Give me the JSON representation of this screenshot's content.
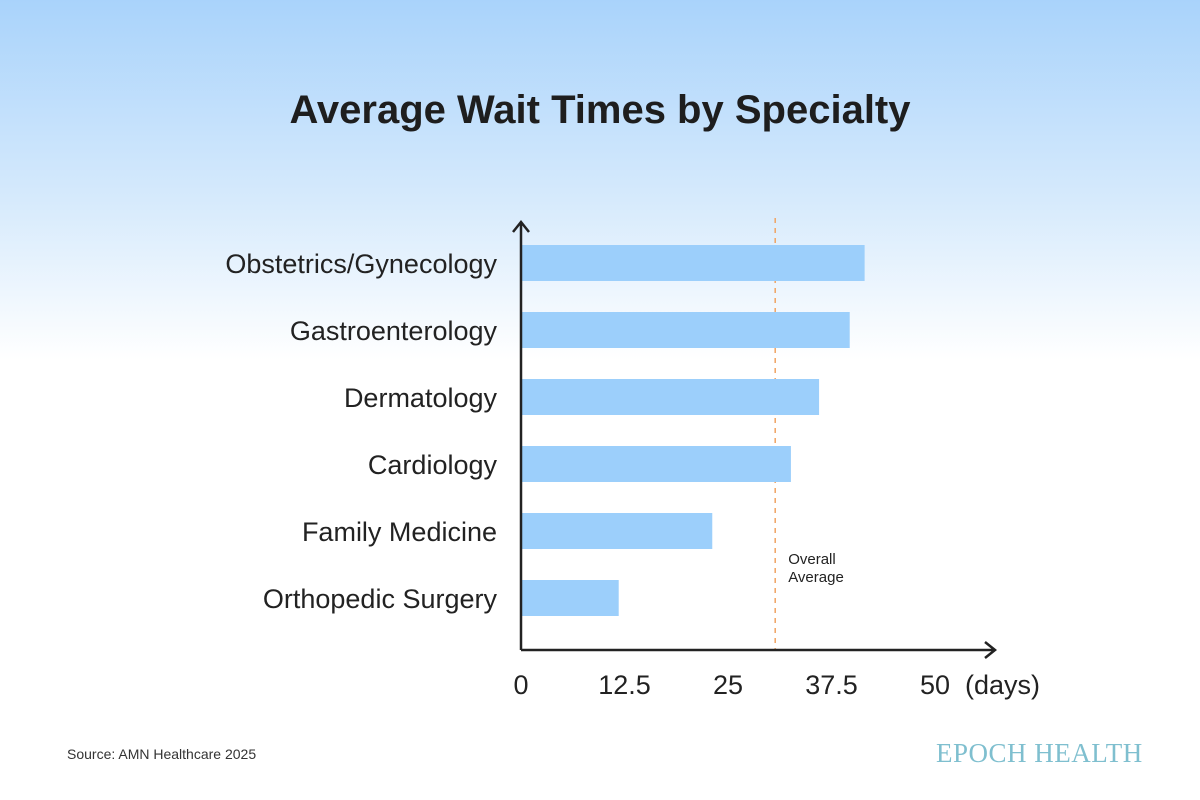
{
  "chart_data": {
    "type": "bar",
    "orientation": "horizontal",
    "title": "Average Wait Times by Specialty",
    "categories": [
      "Obstetrics/Gynecology",
      "Gastroenterology",
      "Dermatology",
      "Cardiology",
      "Family Medicine",
      "Orthopedic Surgery"
    ],
    "values": [
      41.5,
      39.7,
      36,
      32.6,
      23.1,
      11.8
    ],
    "xlabel": "(days)",
    "xlim": [
      0,
      50
    ],
    "xticks": [
      "0",
      "12.5",
      "25",
      "37.5",
      "50"
    ],
    "reference_line": {
      "label_line1": "Overall",
      "label_line2": "Average",
      "value": 30.7,
      "color": "#f0a462"
    },
    "bar_color": "#9ccffb",
    "grid": false
  },
  "source": "Source: AMN Healthcare 2025",
  "logo": "EPOCH HEALTH"
}
